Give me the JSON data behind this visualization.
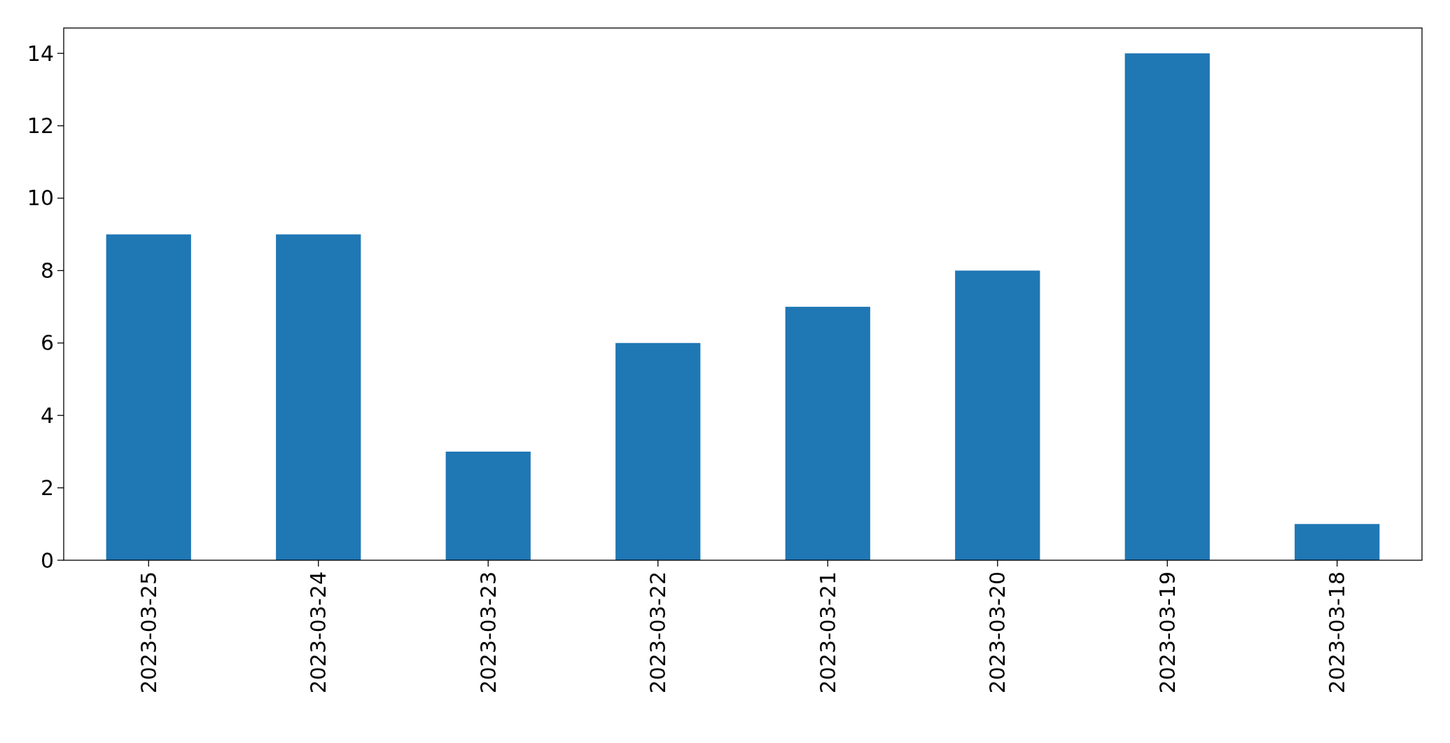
{
  "chart_data": {
    "type": "bar",
    "categories": [
      "2023-03-25",
      "2023-03-24",
      "2023-03-23",
      "2023-03-22",
      "2023-03-21",
      "2023-03-20",
      "2023-03-19",
      "2023-03-18"
    ],
    "values": [
      9,
      9,
      3,
      6,
      7,
      8,
      14,
      1
    ],
    "color": "#1f77b4",
    "ylim": [
      0,
      14.7
    ],
    "yticks": [
      0,
      2,
      4,
      6,
      8,
      10,
      12,
      14
    ],
    "grid": false
  }
}
